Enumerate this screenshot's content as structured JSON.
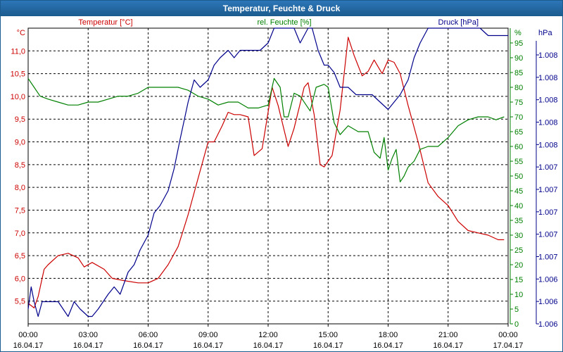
{
  "window": {
    "title": "Temperatur, Feuchte & Druck"
  },
  "colors": {
    "temp": "#cc0000",
    "humidity": "#008000",
    "pressure": "#00008b",
    "grid": "#000000",
    "title_bar": "#1b5b8e"
  },
  "chart_data": {
    "type": "line",
    "title": "Temperatur, Feuchte & Druck",
    "grid": true,
    "x_ticks": [
      {
        "time": "00:00",
        "date": "16.04.17"
      },
      {
        "time": "03:00",
        "date": "16.04.17"
      },
      {
        "time": "06:00",
        "date": "16.04.17"
      },
      {
        "time": "09:00",
        "date": "16.04.17"
      },
      {
        "time": "12:00",
        "date": "16.04.17"
      },
      {
        "time": "15:00",
        "date": "16.04.17"
      },
      {
        "time": "18:00",
        "date": "16.04.17"
      },
      {
        "time": "21:00",
        "date": "16.04.17"
      },
      {
        "time": "00:00",
        "date": "17.04.17"
      }
    ],
    "xlim": [
      0,
      24
    ],
    "axes": {
      "temp": {
        "label": "Temperatur [°C]",
        "unit": "°C",
        "ylim": [
          5.0,
          11.5
        ],
        "ticks": [
          "5,5",
          "6,0",
          "6,5",
          "7,0",
          "7,5",
          "8,0",
          "8,5",
          "9,0",
          "9,5",
          "10,0",
          "10,5",
          "11,0"
        ]
      },
      "humidity": {
        "label": "rel. Feuchte [%]",
        "unit": "%",
        "ylim": [
          0,
          100
        ],
        "ticks": [
          "0",
          "5",
          "10",
          "15",
          "20",
          "25",
          "30",
          "35",
          "40",
          "45",
          "50",
          "55",
          "60",
          "65",
          "70",
          "75",
          "80",
          "85",
          "90",
          "95"
        ]
      },
      "pressure": {
        "label": "Druck [hPa]",
        "unit": "hPa",
        "ylim": [
          1006.0,
          1008.0
        ],
        "ticks": [
          "1.006",
          "1.006",
          "1.006",
          "1.007",
          "1.007",
          "1.007",
          "1.007",
          "1.007",
          "1.008",
          "1.008",
          "1.008",
          "1.008",
          "1.008"
        ]
      }
    },
    "series": [
      {
        "name": "Temperatur [°C]",
        "axis": "temp",
        "x": [
          0,
          0.3,
          0.5,
          0.8,
          1.0,
          1.5,
          2.0,
          2.5,
          2.8,
          3.2,
          3.8,
          4.2,
          4.8,
          5.5,
          6.0,
          6.5,
          7.0,
          7.5,
          8.0,
          8.5,
          9.0,
          9.3,
          9.7,
          10.0,
          10.3,
          10.6,
          11.0,
          11.3,
          11.7,
          12.2,
          12.5,
          13.0,
          13.3,
          13.8,
          14.0,
          14.3,
          14.6,
          14.8,
          15.2,
          15.6,
          16.0,
          16.3,
          16.7,
          17.0,
          17.3,
          17.7,
          18.0,
          18.3,
          18.6,
          19.0,
          19.5,
          20.0,
          20.5,
          21.0,
          21.5,
          22.0,
          22.5,
          23.0,
          23.5,
          23.8
        ],
        "values": [
          5.45,
          5.35,
          5.6,
          6.2,
          6.3,
          6.5,
          6.55,
          6.45,
          6.25,
          6.35,
          6.2,
          6.0,
          5.95,
          5.9,
          5.9,
          6.0,
          6.3,
          6.7,
          7.4,
          8.2,
          9.0,
          9.0,
          9.35,
          9.65,
          9.6,
          9.6,
          9.55,
          8.7,
          8.85,
          10.2,
          9.8,
          8.9,
          9.3,
          10.2,
          10.3,
          9.6,
          8.5,
          8.45,
          8.7,
          9.7,
          11.3,
          10.9,
          10.45,
          10.55,
          10.8,
          10.5,
          10.8,
          10.75,
          10.5,
          9.8,
          9.0,
          8.1,
          7.8,
          7.6,
          7.25,
          7.05,
          7.0,
          6.95,
          6.85,
          6.85
        ]
      },
      {
        "name": "rel. Feuchte [%]",
        "axis": "humidity",
        "x": [
          0,
          0.3,
          0.6,
          1.0,
          1.5,
          2.0,
          2.5,
          3.0,
          3.5,
          4.0,
          4.5,
          5.0,
          5.5,
          6.0,
          6.5,
          7.0,
          7.5,
          8.0,
          8.5,
          9.0,
          9.5,
          10.0,
          10.5,
          11.0,
          11.5,
          12.0,
          12.3,
          12.6,
          12.8,
          13.0,
          13.3,
          13.6,
          13.9,
          14.1,
          14.4,
          14.8,
          15.0,
          15.3,
          15.6,
          16.0,
          16.5,
          17.0,
          17.3,
          17.6,
          17.8,
          18.0,
          18.2,
          18.4,
          18.6,
          18.8,
          19.0,
          19.3,
          19.6,
          20.0,
          20.5,
          21.0,
          21.5,
          22.0,
          22.5,
          23.0,
          23.4,
          23.8
        ],
        "values": [
          83,
          80,
          77,
          76,
          75,
          74,
          74,
          75,
          75,
          76,
          77,
          77,
          78,
          80,
          80,
          80,
          80,
          79,
          77,
          76,
          74,
          75,
          75,
          73,
          73,
          74,
          83,
          80,
          70,
          70,
          78,
          77,
          74,
          72,
          80,
          81,
          80,
          68,
          64,
          67,
          65,
          65,
          58,
          56,
          63,
          52,
          56,
          59,
          48,
          50,
          53,
          55,
          59,
          60,
          60,
          63,
          67,
          69,
          70,
          70,
          69,
          70
        ]
      },
      {
        "name": "Druck [hPa]",
        "axis": "pressure",
        "x": [
          0,
          0.15,
          0.3,
          0.5,
          0.7,
          1.0,
          1.5,
          2.0,
          2.3,
          2.6,
          3.0,
          3.2,
          3.5,
          4.0,
          4.3,
          4.6,
          5.0,
          5.3,
          5.6,
          6.0,
          6.3,
          6.6,
          7.0,
          7.3,
          7.6,
          8.0,
          8.3,
          8.6,
          9.0,
          9.3,
          9.6,
          10.0,
          10.3,
          10.6,
          11.0,
          11.3,
          11.6,
          12.0,
          12.3,
          12.6,
          13.0,
          13.3,
          13.6,
          14.0,
          14.2,
          14.5,
          14.8,
          15.0,
          15.3,
          15.6,
          16.0,
          16.4,
          16.8,
          17.2,
          17.6,
          18.0,
          18.3,
          18.6,
          19.0,
          19.3,
          19.6,
          20.0,
          20.3,
          20.6,
          21.0,
          21.3,
          21.6,
          22.0,
          22.3,
          22.6,
          23.0,
          23.3,
          23.6,
          24.0
        ],
        "values": [
          1006.1,
          1006.25,
          1006.15,
          1006.05,
          1006.15,
          1006.15,
          1006.15,
          1006.05,
          1006.15,
          1006.1,
          1006.05,
          1006.05,
          1006.1,
          1006.2,
          1006.25,
          1006.2,
          1006.35,
          1006.4,
          1006.5,
          1006.6,
          1006.75,
          1006.8,
          1006.9,
          1007.05,
          1007.25,
          1007.5,
          1007.65,
          1007.6,
          1007.65,
          1007.75,
          1007.8,
          1007.85,
          1007.8,
          1007.85,
          1007.85,
          1007.85,
          1007.85,
          1007.9,
          1008.05,
          1008.1,
          1008.05,
          1008.0,
          1007.9,
          1008.1,
          1008.05,
          1007.85,
          1007.75,
          1007.75,
          1007.7,
          1007.6,
          1007.6,
          1007.55,
          1007.55,
          1007.55,
          1007.5,
          1007.45,
          1007.5,
          1007.55,
          1007.65,
          1007.8,
          1007.9,
          1008.1,
          1008.3,
          1008.3,
          1008.25,
          1008.35,
          1008.3,
          1008.3,
          1008.15,
          1008.05,
          1007.95,
          1007.95,
          1007.95,
          1007.95
        ]
      }
    ]
  }
}
